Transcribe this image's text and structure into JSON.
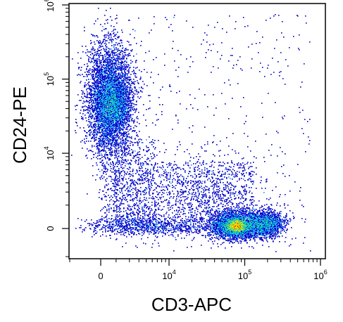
{
  "chart_data": {
    "type": "scatter",
    "style": "flow-cytometry-density-dot-plot",
    "title": "",
    "xlabel": "CD3-APC",
    "ylabel": "CD24-PE",
    "x_scale": "biexponential",
    "y_scale": "biexponential",
    "xlim": [
      -1000,
      1000000
    ],
    "ylim": [
      -1000,
      1000000
    ],
    "x_ticks": [
      {
        "value": 0,
        "base": "0",
        "exp": ""
      },
      {
        "value": 10000,
        "base": "10",
        "exp": "4"
      },
      {
        "value": 100000,
        "base": "10",
        "exp": "5"
      },
      {
        "value": 1000000,
        "base": "10",
        "exp": "6"
      }
    ],
    "y_ticks": [
      {
        "value": 0,
        "base": "0",
        "exp": ""
      },
      {
        "value": 10000,
        "base": "10",
        "exp": "4"
      },
      {
        "value": 100000,
        "base": "10",
        "exp": "5"
      },
      {
        "value": 1000000,
        "base": "10",
        "exp": "6"
      }
    ],
    "density_colormap": [
      "#0000c8",
      "#1e90ff",
      "#00c8c8",
      "#40e080",
      "#d8f000",
      "#ffa000",
      "#ff2000"
    ],
    "grid": false,
    "populations": [
      {
        "center_x": 0,
        "center_y": 40000,
        "spread_x": 2500,
        "spread_y_decades": 0.35,
        "density": "high",
        "peak_color": "#d8f000"
      },
      {
        "center_x": 75000,
        "center_y": 0,
        "spread_x_decades": 0.22,
        "spread_y": 300,
        "density": "very high",
        "peak_color": "#ff2000"
      },
      {
        "center_x": 180000,
        "center_y": 0,
        "spread_x_decades": 0.15,
        "spread_y": 300,
        "density": "high",
        "peak_color": "#40e080"
      }
    ]
  }
}
